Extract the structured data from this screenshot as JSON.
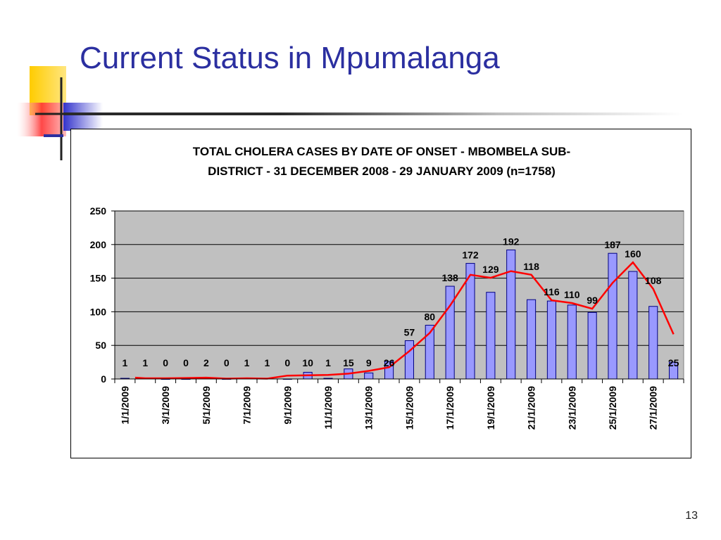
{
  "slide": {
    "title": "Current Status in Mpumalanga",
    "page_number": "13"
  },
  "colors": {
    "title": "#2b2fa0",
    "plot_background": "#c0c0c0",
    "bar_fill": "#9999ff",
    "bar_stroke": "#000080",
    "trend_line": "#ff0000",
    "deco_yellow": "#ffcc00",
    "deco_blue": "#3333cc",
    "deco_red": "#ff3333"
  },
  "chart_data": {
    "type": "bar",
    "title_line1": "TOTAL CHOLERA CASES BY DATE OF ONSET - MBOMBELA SUB-",
    "title_line2": "DISTRICT - 31 DECEMBER 2008 - 29 JANUARY 2009 (n=1758)",
    "xlabel": "",
    "ylabel": "",
    "ylim": [
      0,
      250
    ],
    "yticks": [
      "0",
      "50",
      "100",
      "150",
      "200",
      "250"
    ],
    "grid": true,
    "legend": "none",
    "x_tick_labels": [
      "1/1/2009",
      "3/1/2009",
      "5/1/2009",
      "7/1/2009",
      "9/1/2009",
      "11/1/2009",
      "13/1/2009",
      "15/1/2009",
      "17/1/2009",
      "19/1/2009",
      "21/1/2009",
      "23/1/2009",
      "25/1/2009",
      "27/1/2009"
    ],
    "values": [
      1,
      1,
      0,
      0,
      2,
      0,
      1,
      1,
      0,
      10,
      1,
      15,
      9,
      26,
      57,
      80,
      138,
      172,
      129,
      192,
      118,
      116,
      110,
      99,
      187,
      160,
      108,
      25
    ],
    "data_labels": [
      "1",
      "1",
      "0",
      "0",
      "2",
      "0",
      "1",
      "1",
      "0",
      "10",
      "1",
      "15",
      "9",
      "26",
      "57",
      "80",
      "138",
      "172",
      "129",
      "192",
      "118",
      "116",
      "110",
      "99",
      "187",
      "160",
      "108",
      "25"
    ],
    "trend_type": "moving average",
    "trend_values": [
      2,
      1,
      1,
      1.5,
      2,
      0.5,
      1,
      0.5,
      5,
      5.5,
      6,
      8,
      12,
      17.5,
      41.5,
      68.5,
      109,
      155,
      150.5,
      160.5,
      155,
      117,
      113,
      104.5,
      143,
      173.5,
      134,
      66.5
    ]
  }
}
